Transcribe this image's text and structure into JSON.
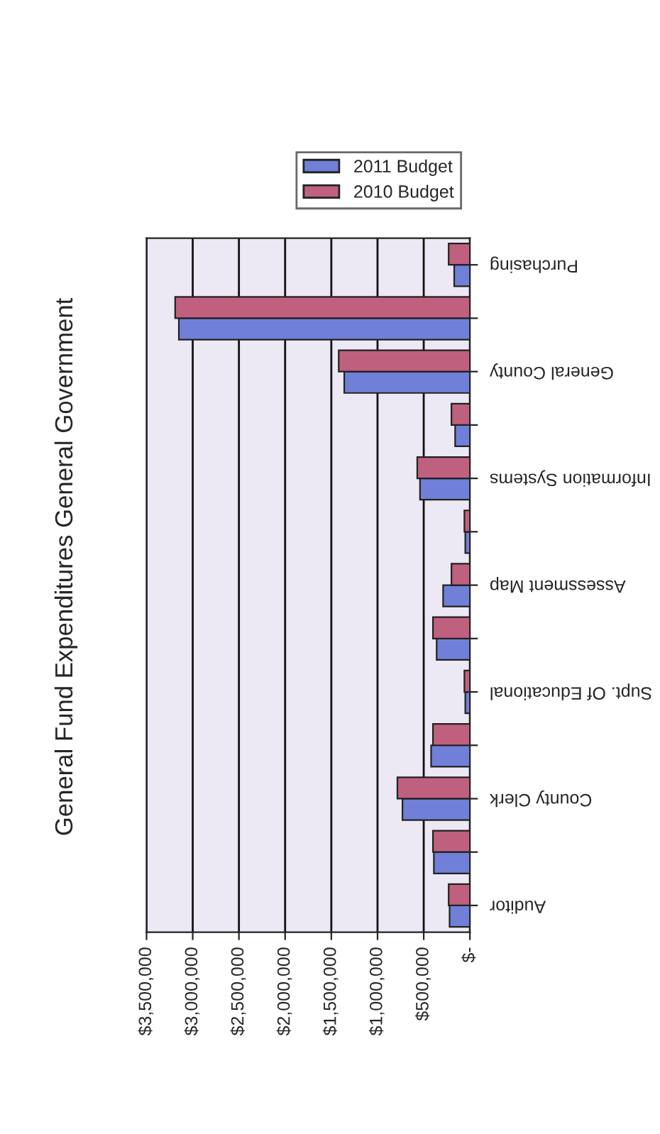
{
  "chart_data": {
    "type": "bar",
    "orientation": "horizontal",
    "title": "General Fund Expenditures General Government",
    "categories": [
      "Purchasing",
      null,
      "General County",
      null,
      "Information Systems",
      null,
      "Assessment Map",
      null,
      "Supt. Of Educational",
      null,
      "County Clerk",
      null,
      "Auditor"
    ],
    "series": [
      {
        "name": "2011 Budget",
        "color": "#7080d8",
        "values": [
          170000,
          3150000,
          1360000,
          160000,
          540000,
          50000,
          290000,
          360000,
          50000,
          420000,
          730000,
          390000,
          220000
        ]
      },
      {
        "name": "2010 Budget",
        "color": "#c0607f",
        "values": [
          230000,
          3190000,
          1420000,
          200000,
          570000,
          60000,
          200000,
          400000,
          60000,
          400000,
          785000,
          400000,
          230000
        ]
      }
    ],
    "xlim": [
      3500000,
      0
    ],
    "xticks": [
      {
        "value": 3500000,
        "label": "$3,500,000"
      },
      {
        "value": 3000000,
        "label": "$3,000,000"
      },
      {
        "value": 2500000,
        "label": "$2,500,000"
      },
      {
        "value": 2000000,
        "label": "$2,000,000"
      },
      {
        "value": 1500000,
        "label": "$1,500,000"
      },
      {
        "value": 1000000,
        "label": "$1,000,000"
      },
      {
        "value": 500000,
        "label": "$500,000"
      },
      {
        "value": 0,
        "label": "$-"
      }
    ],
    "grid": "x",
    "legend": "top"
  }
}
